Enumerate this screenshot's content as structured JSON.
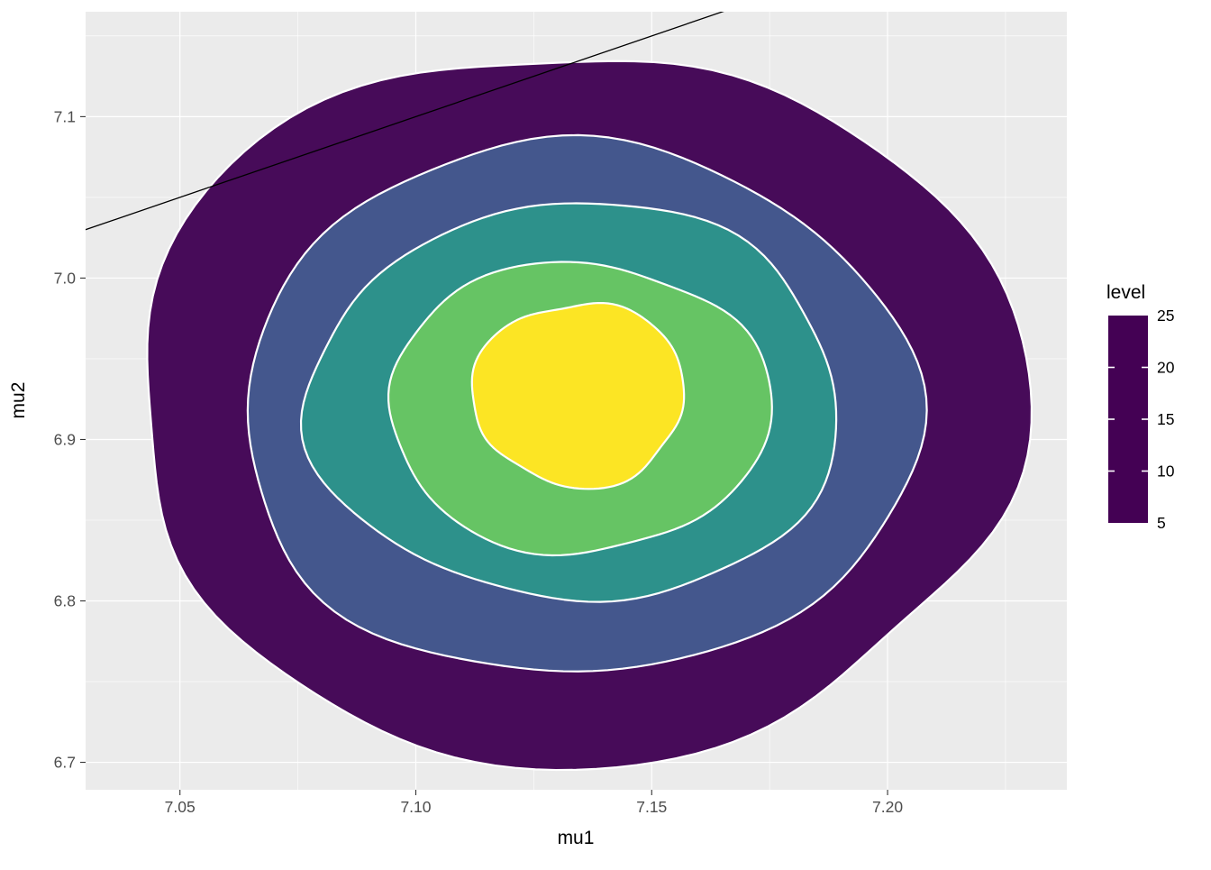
{
  "chart_data": {
    "type": "filled-contour-density",
    "title": "",
    "xlabel": "mu1",
    "ylabel": "mu2",
    "xlim": [
      7.03,
      7.238
    ],
    "ylim": [
      6.683,
      7.165
    ],
    "x_ticks": [
      {
        "label": "7.05",
        "value": 7.05
      },
      {
        "label": "7.10",
        "value": 7.1
      },
      {
        "label": "7.15",
        "value": 7.15
      },
      {
        "label": "7.20",
        "value": 7.2
      }
    ],
    "y_ticks": [
      {
        "label": "7.1",
        "value": 7.1
      },
      {
        "label": "7.0",
        "value": 7.0
      },
      {
        "label": "6.9",
        "value": 6.9
      },
      {
        "label": "6.8",
        "value": 6.8
      },
      {
        "label": "6.7",
        "value": 6.7
      }
    ],
    "x_minor_ticks": [
      7.075,
      7.125,
      7.175,
      7.225
    ],
    "y_minor_ticks": [
      6.75,
      6.85,
      6.95,
      7.05,
      7.15
    ],
    "grid_on": true,
    "panel_bg": "#EBEBEB",
    "grid_color": "#FFFFFF",
    "tick_mark_color": "#333333",
    "contour_stroke": "#FFFFFF",
    "reference_line": {
      "slope": 1,
      "intercept": 0,
      "color": "#000000"
    },
    "contours": [
      {
        "level": 5,
        "color": "#470B59",
        "cx": 7.134,
        "cy": 6.9205,
        "rx": 0.094,
        "ry": 0.2205
      },
      {
        "level": 10,
        "color": "#44578D",
        "cx": 7.1344,
        "cy": 6.918,
        "rx": 0.0715,
        "ry": 0.165
      },
      {
        "level": 15,
        "color": "#2D918B",
        "cx": 7.134,
        "cy": 6.923,
        "rx": 0.0563,
        "ry": 0.123
      },
      {
        "level": 20,
        "color": "#66C464",
        "cx": 7.1345,
        "cy": 6.92,
        "rx": 0.0405,
        "ry": 0.09
      },
      {
        "level": 25,
        "color": "#FCE524",
        "cx": 7.1346,
        "cy": 6.928,
        "rx": 0.0225,
        "ry": 0.057
      }
    ],
    "legend": {
      "title": "level",
      "range": [
        5,
        25
      ],
      "tick_values": [
        25,
        20,
        15,
        10,
        5
      ],
      "tick_labels": [
        "25",
        "20",
        "15",
        "10",
        "5"
      ],
      "interior_tick_values": [
        20,
        15,
        10
      ],
      "gradient_values": [
        5,
        10,
        15,
        20,
        25
      ],
      "gradient_colors": [
        "#440154",
        "#44578D",
        "#2D918B",
        "#66C464",
        "#FCE524"
      ],
      "position": "right"
    }
  }
}
